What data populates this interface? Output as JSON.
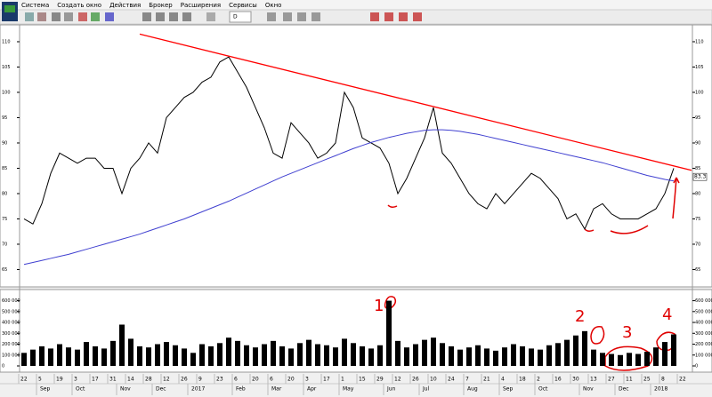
{
  "menu": [
    "Система",
    "Создать окно",
    "Действия",
    "Брокер",
    "Расширения",
    "Сервисы",
    "Окно"
  ],
  "toolbar": {
    "timeframe": "D"
  },
  "chart_data": [
    {
      "type": "line",
      "x": [
        "22",
        null,
        "5",
        null,
        "19",
        null,
        "3",
        null,
        "17",
        null,
        "31",
        null,
        "14",
        null,
        "28",
        null,
        "12",
        null,
        "26",
        null,
        "9",
        null,
        "23",
        null,
        "6",
        null,
        "20",
        null,
        "6",
        null,
        "20",
        null,
        "3",
        null,
        "17",
        null,
        "1",
        null,
        "15",
        null,
        "29",
        null,
        "12",
        null,
        "26",
        null,
        "10",
        null,
        "24",
        null,
        "7",
        null,
        "21",
        null,
        "4",
        null,
        "18",
        null,
        "2",
        null,
        "16",
        null,
        "30",
        null,
        "13",
        null,
        "27",
        null,
        "11",
        null,
        "25",
        null,
        "8",
        null,
        "22"
      ],
      "x_months": [
        null,
        null,
        "Sep",
        null,
        null,
        null,
        "Oct",
        null,
        null,
        null,
        null,
        "Nov",
        null,
        null,
        null,
        "Dec",
        null,
        null,
        null,
        "2017",
        null,
        null,
        null,
        null,
        "Feb",
        null,
        null,
        null,
        "Mar",
        null,
        null,
        null,
        "Apr",
        null,
        null,
        null,
        "May",
        null,
        null,
        null,
        null,
        "Jun",
        null,
        null,
        null,
        "Jul",
        null,
        null,
        null,
        null,
        "Aug",
        null,
        null,
        null,
        "Sep",
        null,
        null,
        null,
        "Oct",
        null,
        null,
        null,
        null,
        "Nov",
        null,
        null,
        null,
        "Dec",
        null,
        null,
        null,
        "2018",
        null,
        null,
        null
      ],
      "series": [
        {
          "color": "#000000",
          "values": [
            75,
            74,
            78,
            84,
            88,
            87,
            86,
            87,
            87,
            85,
            85,
            80,
            85,
            87,
            90,
            88,
            95,
            97,
            99,
            100,
            102,
            103,
            106,
            107,
            104,
            101,
            97,
            93,
            88,
            87,
            94,
            92,
            90,
            87,
            88,
            90,
            100,
            97,
            91,
            90,
            89,
            86,
            80,
            83,
            87,
            91,
            97,
            88,
            86,
            83,
            80,
            78,
            77,
            80,
            78,
            80,
            82,
            84,
            83,
            81,
            79,
            75,
            76,
            73,
            77,
            78,
            76,
            75,
            75,
            75,
            76,
            77,
            80,
            85,
            null
          ]
        },
        {
          "color": "#4040d0",
          "values": [
            66,
            66.4,
            66.8,
            67.2,
            67.6,
            68,
            68.5,
            69,
            69.5,
            70,
            70.5,
            71,
            71.5,
            72,
            72.6,
            73.2,
            73.8,
            74.4,
            75,
            75.7,
            76.4,
            77.1,
            77.8,
            78.5,
            79.3,
            80.1,
            80.9,
            81.7,
            82.5,
            83.3,
            84,
            84.7,
            85.4,
            86.1,
            86.8,
            87.5,
            88.2,
            88.9,
            89.5,
            90.1,
            90.6,
            91.1,
            91.5,
            91.9,
            92.2,
            92.5,
            92.6,
            92.6,
            92.5,
            92.3,
            92,
            91.7,
            91.3,
            90.9,
            90.5,
            90.1,
            89.7,
            89.3,
            88.9,
            88.5,
            88.1,
            87.7,
            87.3,
            86.9,
            86.5,
            86.1,
            85.6,
            85.1,
            84.6,
            84.1,
            83.6,
            83.2,
            82.8,
            82.5,
            null
          ]
        }
      ],
      "trendline": {
        "color": "#ff0000",
        "x": [
          13,
          75
        ],
        "values": [
          111.5,
          84.6
        ]
      },
      "last_value": 83.3,
      "ylim": [
        61.75,
        111.75
      ],
      "yticks": [
        65,
        70,
        75,
        80,
        85,
        90,
        95,
        100,
        105,
        110
      ],
      "annotations": [
        "1",
        "2",
        "3",
        "4"
      ],
      "annotation_color": "#e00000"
    },
    {
      "type": "bar",
      "color": "#000000",
      "values": [
        120000,
        150000,
        180000,
        160000,
        200000,
        170000,
        150000,
        220000,
        180000,
        160000,
        230000,
        380000,
        250000,
        180000,
        170000,
        200000,
        220000,
        190000,
        160000,
        120000,
        200000,
        180000,
        210000,
        260000,
        230000,
        190000,
        170000,
        200000,
        230000,
        180000,
        160000,
        210000,
        240000,
        200000,
        190000,
        170000,
        250000,
        210000,
        180000,
        160000,
        190000,
        600000,
        230000,
        170000,
        200000,
        240000,
        260000,
        210000,
        180000,
        150000,
        170000,
        190000,
        160000,
        140000,
        170000,
        200000,
        180000,
        160000,
        150000,
        190000,
        210000,
        240000,
        280000,
        320000,
        150000,
        120000,
        110000,
        100000,
        120000,
        110000,
        130000,
        170000,
        220000,
        290000,
        null
      ],
      "ylim": [
        0,
        670000
      ],
      "yticks": [
        0,
        {
          "value": 100000,
          "label": "100 000"
        },
        {
          "value": 200000,
          "label": "200 000"
        },
        {
          "value": 300000,
          "label": "300 000"
        },
        {
          "value": 400000,
          "label": "400 000"
        },
        {
          "value": 500000,
          "label": "500 000"
        },
        {
          "value": 600000,
          "label": "600 000"
        }
      ]
    }
  ]
}
